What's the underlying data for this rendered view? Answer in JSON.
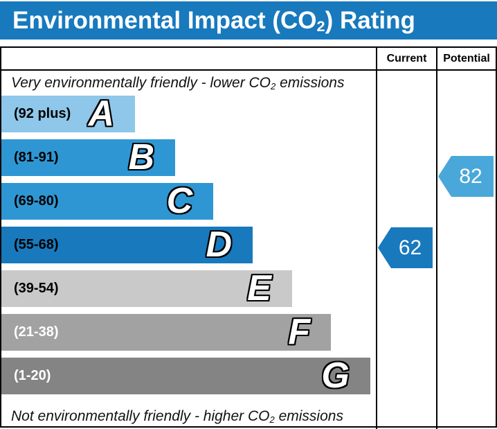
{
  "title": {
    "pre": "Environmental Impact (CO",
    "sub": "2",
    "post": ") Rating"
  },
  "title_bar_color": "#1879bd",
  "columns": {
    "current": "Current",
    "potential": "Potential"
  },
  "notes": {
    "top": {
      "pre": "Very environmentally friendly - lower CO",
      "sub": "2",
      "post": " emissions"
    },
    "bottom": {
      "pre": "Not environmentally friendly - higher CO",
      "sub": "2",
      "post": " emissions"
    }
  },
  "bands": [
    {
      "letter": "A",
      "range": "(92 plus)",
      "color": "#8ec7e9",
      "label_color": "#000000",
      "width_pct": 35.7
    },
    {
      "letter": "B",
      "range": "(81-91)",
      "color": "#2e97d3",
      "label_color": "#000000",
      "width_pct": 46.4
    },
    {
      "letter": "C",
      "range": "(69-80)",
      "color": "#2e97d3",
      "label_color": "#000000",
      "width_pct": 56.6
    },
    {
      "letter": "D",
      "range": "(55-68)",
      "color": "#1879bd",
      "label_color": "#000000",
      "width_pct": 67.1
    },
    {
      "letter": "E",
      "range": "(39-54)",
      "color": "#c9c9c9",
      "label_color": "#000000",
      "width_pct": 77.6
    },
    {
      "letter": "F",
      "range": "(21-38)",
      "color": "#a2a2a2",
      "label_color": "#ffffff",
      "width_pct": 88.0
    },
    {
      "letter": "G",
      "range": "(1-20)",
      "color": "#848484",
      "label_color": "#ffffff",
      "width_pct": 98.5
    }
  ],
  "ratings": {
    "current": {
      "value": "62",
      "color": "#1879bd"
    },
    "potential": {
      "value": "82",
      "color": "#4aa7d9"
    }
  },
  "chart_data": {
    "type": "bar",
    "title": "Environmental Impact (CO2) Rating",
    "categories": [
      "A",
      "B",
      "C",
      "D",
      "E",
      "F",
      "G"
    ],
    "band_ranges": [
      "92 plus",
      "81-91",
      "69-80",
      "55-68",
      "39-54",
      "21-38",
      "1-20"
    ],
    "band_colors": [
      "#8ec7e9",
      "#2e97d3",
      "#2e97d3",
      "#1879bd",
      "#c9c9c9",
      "#a2a2a2",
      "#848484"
    ],
    "bar_width_pct": [
      35.7,
      46.4,
      56.6,
      67.1,
      77.6,
      88.0,
      98.5
    ],
    "current_value": 62,
    "current_band": "D",
    "potential_value": 82,
    "potential_band": "B",
    "top_annotation": "Very environmentally friendly - lower CO2 emissions",
    "bottom_annotation": "Not environmentally friendly - higher CO2 emissions",
    "columns": [
      "Current",
      "Potential"
    ],
    "legend_position": "none",
    "grid": false
  }
}
